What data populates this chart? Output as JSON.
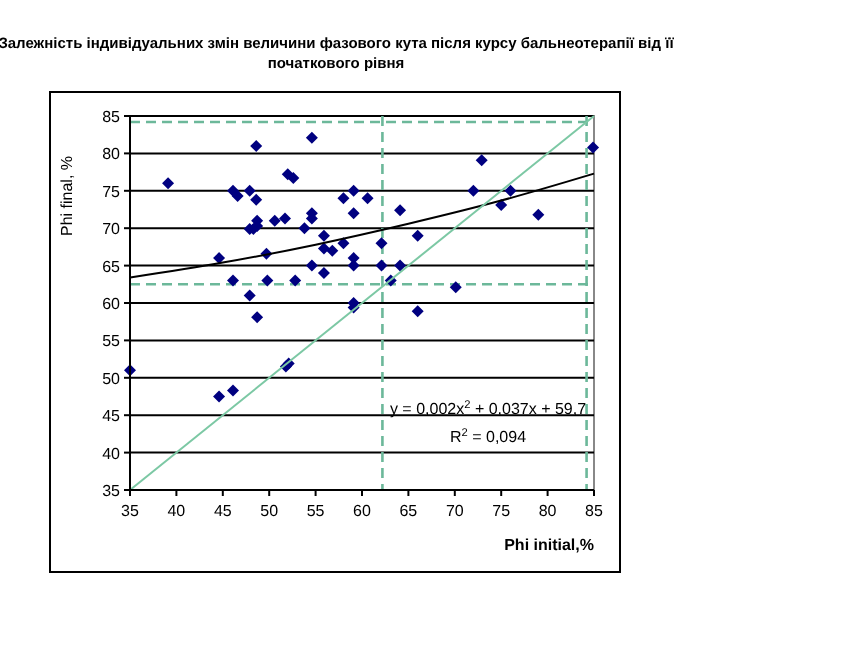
{
  "chart_data": {
    "type": "scatter",
    "title": "Залежність індивідуальних змін величини фазового кута після курсу бальнеотерапії від її початкового рівня",
    "xlabel": "Phi initial,%",
    "ylabel": "Phi final, %",
    "xlim": [
      35,
      85
    ],
    "ylim": [
      35,
      85
    ],
    "xticks": [
      35,
      40,
      45,
      50,
      55,
      60,
      65,
      70,
      75,
      80,
      85
    ],
    "yticks": [
      35,
      40,
      45,
      50,
      55,
      60,
      65,
      70,
      75,
      80,
      85
    ],
    "grid": "y",
    "series": [
      {
        "color": "#000080",
        "marker": "diamond",
        "x": [
          35,
          39.1,
          44.6,
          46.1,
          46.1,
          46.6,
          47.9,
          47.9,
          47.9,
          48.6,
          48.6,
          48.7,
          48.7,
          48.3,
          48.7,
          49.7,
          49.8,
          50.6,
          51.7,
          52,
          52.6,
          52.8,
          53.8,
          54.6,
          54.6,
          54.6,
          54.6,
          55.9,
          55.9,
          55.9,
          56.8,
          58,
          58,
          59.1,
          59.1,
          59.1,
          59.1,
          59.1,
          59.1,
          60.6,
          62.1,
          62.1,
          63.1,
          64.1,
          64.1,
          66,
          66,
          51.8,
          52.1,
          44.6,
          46.1,
          70.1,
          72,
          72.9,
          76,
          75,
          79,
          84.9
        ],
        "values": [
          51,
          76,
          66,
          63,
          75,
          74.3,
          75,
          69.9,
          61,
          81,
          73.8,
          71,
          70.3,
          69.9,
          58.1,
          66.6,
          63,
          71,
          71.3,
          77.2,
          76.7,
          63,
          70,
          82.1,
          72,
          71.3,
          65,
          69,
          67.3,
          64,
          67,
          68,
          74,
          75,
          72,
          66,
          65,
          60,
          59.4,
          74,
          68,
          65,
          63,
          72.4,
          65,
          69,
          58.9,
          51.5,
          51.9,
          47.5,
          48.3,
          62.1,
          75,
          79.1,
          75,
          73.1,
          71.8,
          80.8
        ]
      },
      {
        "type": "line",
        "color": "#000000",
        "x": [
          35,
          45,
          55,
          65,
          75,
          85
        ],
        "values": [
          63.4,
          65.4,
          67.8,
          70.6,
          73.7,
          77.3
        ]
      },
      {
        "type": "line",
        "color": "#7cc8a4",
        "x": [
          35,
          85
        ],
        "values": [
          35,
          85
        ]
      }
    ],
    "ref_lines": [
      {
        "axis": "y",
        "value": 84.2,
        "color": "#6cb89a",
        "line_style": "dashed"
      },
      {
        "axis": "y",
        "value": 62.5,
        "color": "#6cb89a",
        "line_style": "dashed"
      },
      {
        "axis": "x",
        "value": 62.2,
        "color": "#6cb89a",
        "line_style": "dashed"
      },
      {
        "axis": "x",
        "value": 84.2,
        "color": "#6cb89a",
        "line_style": "dashed"
      }
    ],
    "annotations": [
      "y = 0,002x$^{2}$ + 0,037x + 59,7",
      "R$^{2}$ = 0,094"
    ]
  }
}
